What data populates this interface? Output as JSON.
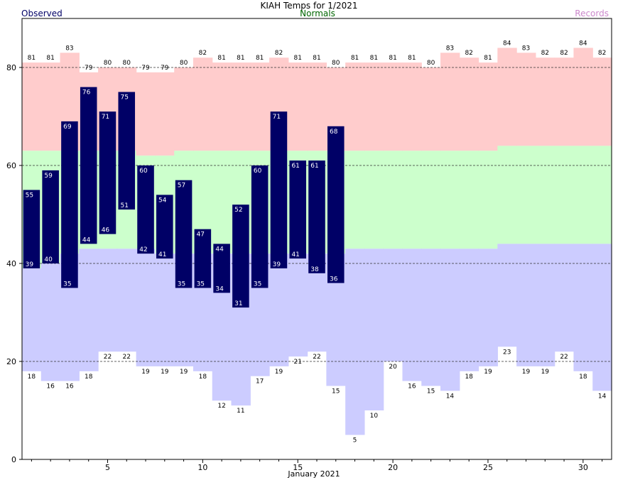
{
  "chart_data": {
    "type": "bar",
    "title": "KIAH Temps for 1/2021",
    "legend": {
      "observed": "Observed",
      "normals": "Normals",
      "records": "Records"
    },
    "xlabel": "January 2021",
    "ylabel": "",
    "xlim": [
      1,
      31
    ],
    "ylim": [
      0,
      90
    ],
    "x_ticks": [
      5,
      10,
      15,
      20,
      25,
      30
    ],
    "y_ticks": [
      0,
      20,
      40,
      60,
      80
    ],
    "grid": "dashed horizontal at 20, 40, 60, 80",
    "days": [
      1,
      2,
      3,
      4,
      5,
      6,
      7,
      8,
      9,
      10,
      11,
      12,
      13,
      14,
      15,
      16,
      17,
      18,
      19,
      20,
      21,
      22,
      23,
      24,
      25,
      26,
      27,
      28,
      29,
      30,
      31
    ],
    "record_high": [
      81,
      81,
      83,
      79,
      80,
      80,
      79,
      79,
      80,
      82,
      81,
      81,
      81,
      82,
      81,
      81,
      80,
      81,
      81,
      81,
      81,
      80,
      83,
      82,
      81,
      84,
      83,
      82,
      82,
      84,
      82
    ],
    "record_low": [
      18,
      16,
      16,
      18,
      22,
      22,
      19,
      19,
      19,
      18,
      12,
      11,
      17,
      19,
      21,
      22,
      15,
      5,
      10,
      20,
      16,
      15,
      14,
      18,
      19,
      23,
      19,
      19,
      22,
      18,
      14
    ],
    "normal_high": [
      63,
      63,
      63,
      63,
      63,
      63,
      62,
      62,
      63,
      63,
      63,
      63,
      63,
      63,
      63,
      63,
      63,
      63,
      63,
      63,
      63,
      63,
      63,
      63,
      63,
      64,
      64,
      64,
      64,
      64,
      64
    ],
    "normal_low": [
      39,
      40,
      42,
      43,
      43,
      43,
      43,
      42,
      42,
      42,
      42,
      42,
      42,
      42,
      42,
      42,
      42,
      43,
      43,
      43,
      43,
      43,
      43,
      43,
      43,
      44,
      44,
      44,
      44,
      44,
      44
    ],
    "observed_high": [
      55,
      59,
      69,
      76,
      71,
      75,
      60,
      54,
      57,
      47,
      44,
      52,
      60,
      71,
      61,
      61,
      68
    ],
    "observed_low": [
      39,
      40,
      35,
      44,
      46,
      51,
      42,
      41,
      35,
      35,
      34,
      31,
      35,
      39,
      41,
      38,
      36
    ],
    "colors": {
      "records_fill": "#ffcccc",
      "normals_fill": "#ccffcc",
      "lows_fill": "#ccccff",
      "observed_bar": "#000066",
      "observed_text": "#000066",
      "normals_text": "#006600",
      "records_text": "#cc88cc"
    }
  }
}
